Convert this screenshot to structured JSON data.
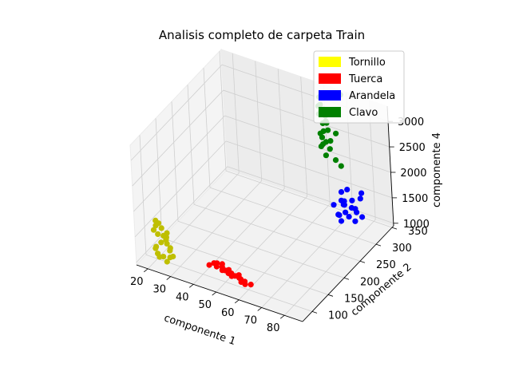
{
  "chart_data": {
    "type": "scatter",
    "title": "Analisis completo de carpeta Train",
    "xlabel": "componente 1",
    "ylabel": "componente 2",
    "zlabel": "componente 4",
    "xlim": [
      15,
      88
    ],
    "ylim": [
      70,
      355
    ],
    "zlim": [
      950,
      3300
    ],
    "xticks": [
      "20",
      "30",
      "40",
      "50",
      "60",
      "70",
      "80"
    ],
    "yticks": [
      "100",
      "150",
      "200",
      "250",
      "300",
      "350"
    ],
    "zticks": [
      "1000",
      "1500",
      "2000",
      "2500",
      "3000"
    ],
    "grid": true,
    "legend_position": "top-right",
    "series": [
      {
        "name": "Tornillo",
        "color": "#bfbf00",
        "legend_color": "#ffff00",
        "points": [
          [
            20,
            100,
            1700
          ],
          [
            20,
            100,
            1600
          ],
          [
            21,
            110,
            1500
          ],
          [
            20,
            105,
            1400
          ],
          [
            22,
            100,
            1300
          ],
          [
            20,
            98,
            1200
          ],
          [
            21,
            95,
            1100
          ],
          [
            24,
            100,
            1450
          ],
          [
            23,
            110,
            1350
          ],
          [
            22,
            115,
            1250
          ],
          [
            25,
            105,
            1150
          ],
          [
            26,
            100,
            1250
          ],
          [
            27,
            100,
            1100
          ],
          [
            25,
            95,
            1000
          ],
          [
            23,
            98,
            1050
          ],
          [
            21,
            102,
            1650
          ],
          [
            19,
            100,
            1500
          ],
          [
            22,
            108,
            1380
          ],
          [
            24,
            104,
            1280
          ],
          [
            20,
            96,
            1180
          ],
          [
            26,
            98,
            1080
          ],
          [
            23,
            112,
            1420
          ],
          [
            21,
            100,
            1000
          ]
        ]
      },
      {
        "name": "Tuerca",
        "color": "#ff0000",
        "legend_color": "#ff0000",
        "points": [
          [
            40,
            120,
            1000
          ],
          [
            42,
            130,
            1000
          ],
          [
            45,
            125,
            1000
          ],
          [
            47,
            120,
            1000
          ],
          [
            50,
            118,
            1000
          ],
          [
            52,
            115,
            1000
          ],
          [
            55,
            112,
            1000
          ],
          [
            57,
            110,
            1000
          ],
          [
            60,
            108,
            1000
          ],
          [
            41,
            128,
            1000
          ],
          [
            43,
            122,
            1000
          ],
          [
            46,
            118,
            1000
          ],
          [
            48,
            124,
            1000
          ],
          [
            51,
            112,
            1000
          ],
          [
            53,
            120,
            1000
          ],
          [
            56,
            106,
            1000
          ],
          [
            58,
            104,
            1000
          ],
          [
            44,
            132,
            1000
          ],
          [
            49,
            116,
            1000
          ],
          [
            54,
            114,
            1000
          ]
        ]
      },
      {
        "name": "Arandela",
        "color": "#0000ff",
        "legend_color": "#0000ff",
        "points": [
          [
            70,
            320,
            1000
          ],
          [
            72,
            330,
            1050
          ],
          [
            74,
            340,
            1100
          ],
          [
            70,
            315,
            1150
          ],
          [
            72,
            320,
            1200
          ],
          [
            75,
            330,
            1250
          ],
          [
            71,
            325,
            1300
          ],
          [
            73,
            335,
            1350
          ],
          [
            76,
            340,
            1400
          ],
          [
            70,
            300,
            1450
          ],
          [
            72,
            310,
            1500
          ],
          [
            74,
            305,
            1550
          ],
          [
            71,
            318,
            1600
          ],
          [
            73,
            322,
            1650
          ],
          [
            75,
            328,
            1020
          ],
          [
            77,
            336,
            1080
          ],
          [
            70,
            312,
            1180
          ],
          [
            74,
            326,
            1280
          ],
          [
            72,
            316,
            1380
          ],
          [
            76,
            344,
            1480
          ]
        ]
      },
      {
        "name": "Clavo",
        "color": "#008000",
        "legend_color": "#008000",
        "points": [
          [
            60,
            340,
            3150
          ],
          [
            61,
            335,
            3050
          ],
          [
            62,
            338,
            2950
          ],
          [
            60,
            342,
            2850
          ],
          [
            63,
            336,
            2750
          ],
          [
            61,
            340,
            2650
          ],
          [
            62,
            334,
            2550
          ],
          [
            60,
            338,
            2450
          ],
          [
            64,
            340,
            2350
          ],
          [
            61,
            332,
            2250
          ],
          [
            63,
            344,
            2150
          ],
          [
            62,
            338,
            2050
          ],
          [
            65,
            346,
            1950
          ],
          [
            67,
            348,
            1850
          ],
          [
            60,
            336,
            3000
          ],
          [
            61,
            330,
            2900
          ],
          [
            62,
            342,
            2800
          ],
          [
            63,
            338,
            2700
          ],
          [
            64,
            334,
            2600
          ],
          [
            66,
            344,
            2500
          ],
          [
            61,
            336,
            2400
          ],
          [
            62,
            340,
            2300
          ],
          [
            60,
            344,
            2200
          ],
          [
            68,
            350,
            3250
          ]
        ]
      }
    ]
  }
}
